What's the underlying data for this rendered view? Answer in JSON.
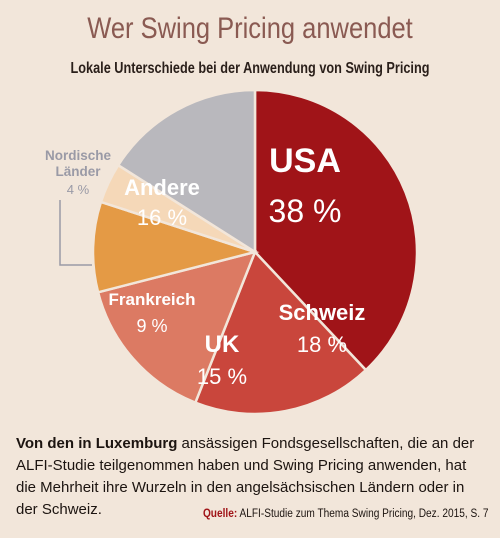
{
  "header": {
    "title": "Wer Swing Pricing anwendet",
    "subtitle": "Lokale Unterschiede bei der Anwendung von Swing Pricing"
  },
  "chart_data": {
    "type": "pie",
    "title": "Wer Swing Pricing anwendet",
    "subtitle": "Lokale Unterschiede bei der Anwendung von Swing Pricing",
    "slices": [
      {
        "label": "USA",
        "value": 38,
        "value_label": "38 %",
        "color": "#a01418"
      },
      {
        "label": "Schweiz",
        "value": 18,
        "value_label": "18 %",
        "color": "#c9463c"
      },
      {
        "label": "UK",
        "value": 15,
        "value_label": "15 %",
        "color": "#dc7a63"
      },
      {
        "label": "Frankreich",
        "value": 9,
        "value_label": "9 %",
        "color": "#e49a45"
      },
      {
        "label": "Nordische Länder",
        "value": 4,
        "value_label": "4 %",
        "color": "#f5d8b8"
      },
      {
        "label": "Andere",
        "value": 16,
        "value_label": "16 %",
        "color": "#b9b8bd"
      }
    ],
    "outside_label": {
      "line1": "Nordische",
      "line2": "Länder",
      "value": "4 %",
      "color": "#9a9aa6"
    }
  },
  "footer": {
    "text_lead": "Von den in Luxemburg",
    "text_rest": " ansässigen Fondsgesellschaften, die an der ALFI-Studie teilgenommen haben und Swing Pricing anwenden, hat die Mehrheit ihre Wurzeln in den angelsächsischen Ländern oder in der Schweiz.",
    "source_label": "Quelle:",
    "source_text": " ALFI-Studie zum Thema Swing Pricing, Dez. 2015, S. 7"
  }
}
